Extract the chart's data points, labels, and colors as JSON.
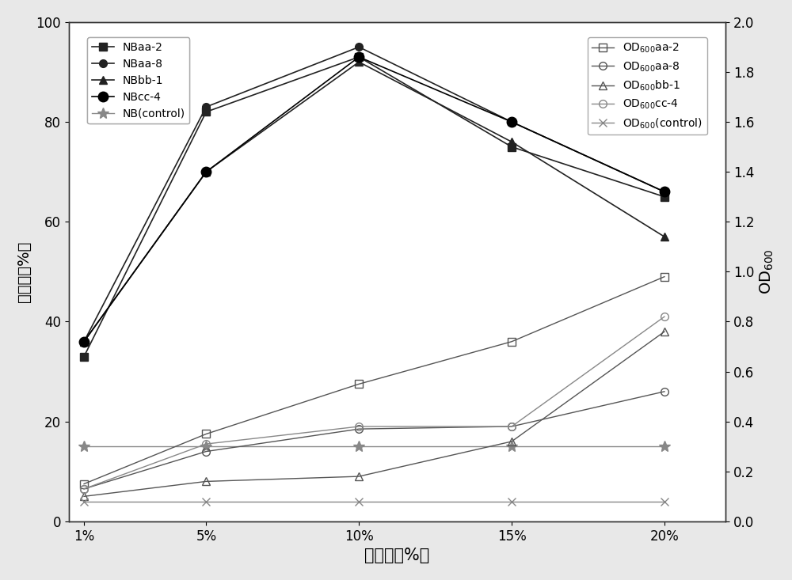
{
  "x_labels": [
    "1%",
    "5%",
    "10%",
    "15%",
    "20%"
  ],
  "x_values": [
    1,
    5,
    10,
    15,
    20
  ],
  "left_series": [
    {
      "label": "NBaa-2",
      "values": [
        33,
        82,
        93,
        75,
        65
      ],
      "marker": "s",
      "fillstyle": "full",
      "color": "#222222",
      "markersize": 7,
      "linestyle": "-",
      "linewidth": 1.2
    },
    {
      "label": "NBaa-8",
      "values": [
        36,
        83,
        95,
        80,
        66
      ],
      "marker": "o",
      "fillstyle": "full",
      "color": "#222222",
      "markersize": 7,
      "linestyle": "-",
      "linewidth": 1.2
    },
    {
      "label": "NBbb-1",
      "values": [
        36,
        70,
        92,
        76,
        57
      ],
      "marker": "^",
      "fillstyle": "full",
      "color": "#222222",
      "markersize": 7,
      "linestyle": "-",
      "linewidth": 1.2
    },
    {
      "label": "NBcc-4",
      "values": [
        36,
        70,
        93,
        80,
        66
      ],
      "marker": "o",
      "fillstyle": "full",
      "color": "#000000",
      "markersize": 9,
      "linestyle": "-",
      "linewidth": 1.2
    },
    {
      "label": "NB(control)",
      "values": [
        15,
        15,
        15,
        15,
        15
      ],
      "marker": "*",
      "fillstyle": "full",
      "color": "#888888",
      "markersize": 10,
      "linestyle": "-",
      "linewidth": 1.0
    }
  ],
  "right_series": [
    {
      "label_parts": [
        "OD",
        "600",
        "aa-2"
      ],
      "values": [
        0.15,
        0.35,
        0.55,
        0.72,
        0.98
      ],
      "marker": "s",
      "fillstyle": "none",
      "color": "#555555",
      "markersize": 7,
      "linestyle": "-",
      "linewidth": 1.0
    },
    {
      "label_parts": [
        "OD",
        "600",
        "aa-8"
      ],
      "values": [
        0.13,
        0.28,
        0.37,
        0.38,
        0.52
      ],
      "marker": "o",
      "fillstyle": "none",
      "color": "#555555",
      "markersize": 7,
      "linestyle": "-",
      "linewidth": 1.0
    },
    {
      "label_parts": [
        "OD",
        "600",
        "bb-1"
      ],
      "values": [
        0.1,
        0.16,
        0.18,
        0.32,
        0.76
      ],
      "marker": "^",
      "fillstyle": "none",
      "color": "#555555",
      "markersize": 7,
      "linestyle": "-",
      "linewidth": 1.0
    },
    {
      "label_parts": [
        "OD",
        "600",
        "cc-4"
      ],
      "values": [
        0.13,
        0.31,
        0.38,
        0.38,
        0.82
      ],
      "marker": "o",
      "fillstyle": "none",
      "color": "#888888",
      "markersize": 7,
      "linestyle": "-",
      "linewidth": 1.0
    },
    {
      "label_parts": [
        "OD",
        "600",
        "(control)"
      ],
      "values": [
        0.08,
        0.08,
        0.08,
        0.08,
        0.08
      ],
      "marker": "x",
      "fillstyle": "full",
      "color": "#888888",
      "markersize": 7,
      "linestyle": "-",
      "linewidth": 1.0
    }
  ],
  "left_ylabel": "降解率（%）",
  "right_ylabel": "OD$_{600}$",
  "xlabel": "接种量（%）",
  "left_ylim": [
    0,
    100
  ],
  "right_ylim": [
    0.0,
    2.0
  ],
  "left_yticks": [
    0,
    20,
    40,
    60,
    80,
    100
  ],
  "right_yticks": [
    0.0,
    0.2,
    0.4,
    0.6,
    0.8,
    1.0,
    1.2,
    1.4,
    1.6,
    1.8,
    2.0
  ],
  "background_color": "#ffffff",
  "fig_background": "#e8e8e8"
}
